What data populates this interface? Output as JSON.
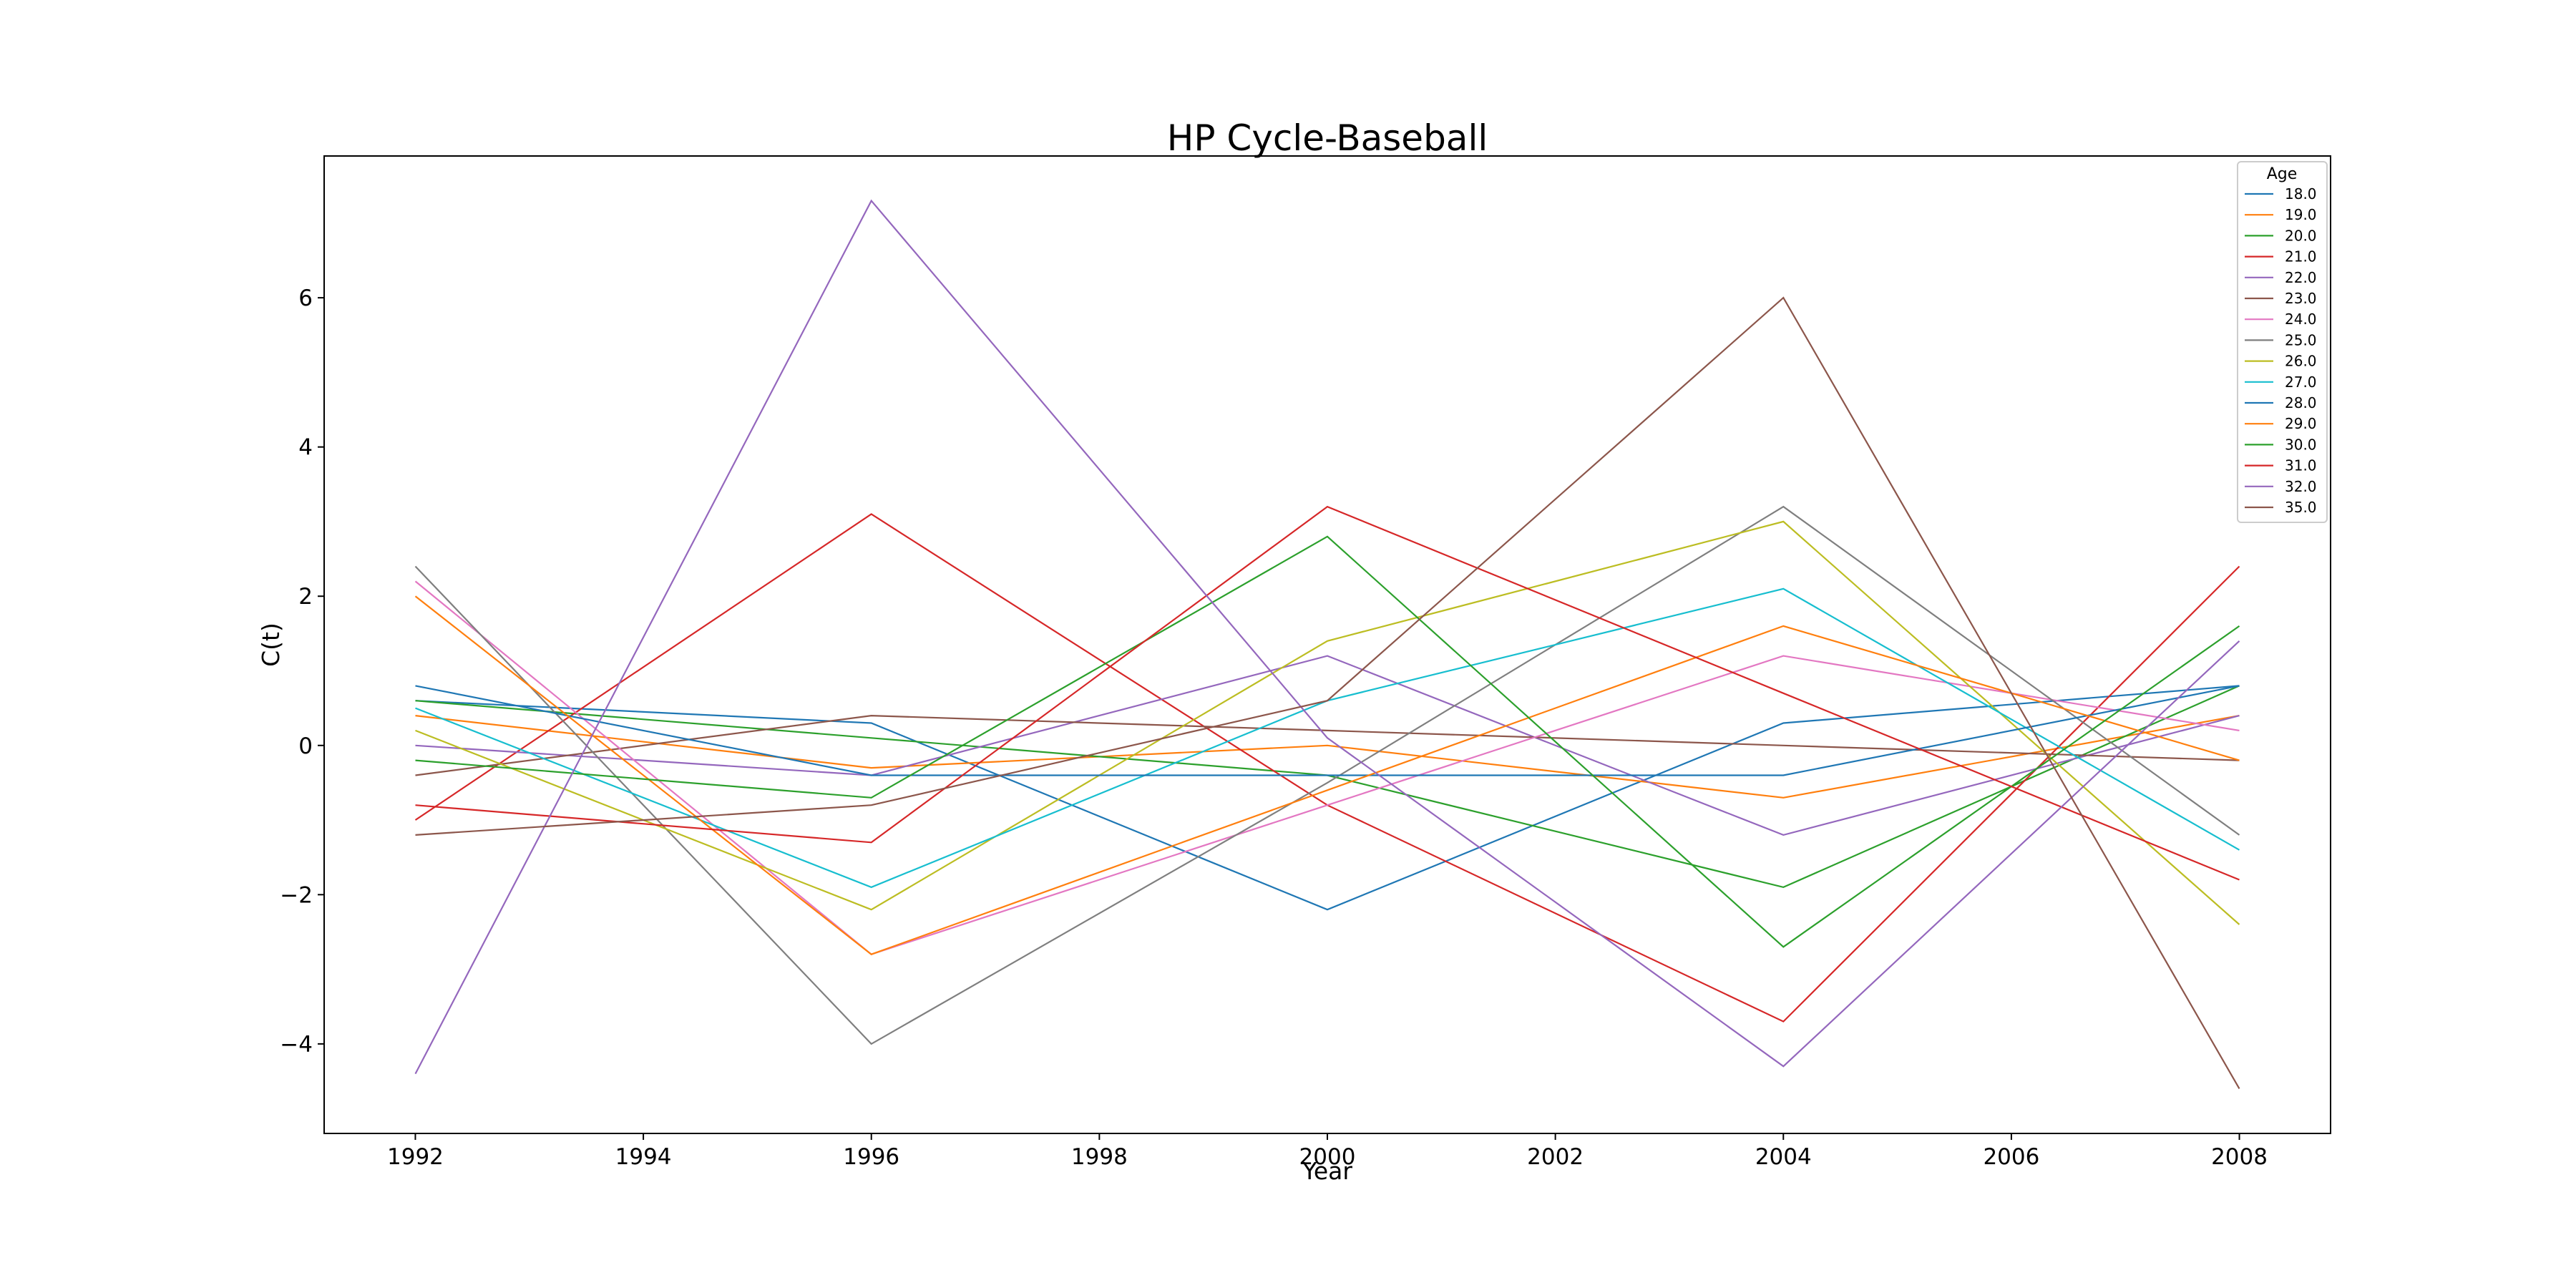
{
  "chart_data": {
    "type": "line",
    "title": "HP Cycle-Baseball",
    "xlabel": "Year",
    "ylabel": "C(t)",
    "xlim": [
      1991.2,
      2008.8
    ],
    "ylim": [
      -5.2,
      7.9
    ],
    "xticks": [
      1992,
      1994,
      1996,
      1998,
      2000,
      2002,
      2004,
      2006,
      2008
    ],
    "yticks": [
      -4,
      -2,
      0,
      2,
      4,
      6
    ],
    "grid": false,
    "legend": {
      "title": "Age",
      "placement": "top-right"
    },
    "x": [
      1992,
      1996,
      2000,
      2004,
      2008
    ],
    "series": [
      {
        "name": "18.0",
        "color": "#1f77b4",
        "values": [
          0.6,
          0.3,
          -2.2,
          0.3,
          0.8
        ]
      },
      {
        "name": "19.0",
        "color": "#ff7f0e",
        "values": [
          0.4,
          -0.3,
          0.0,
          -0.7,
          0.4
        ]
      },
      {
        "name": "20.0",
        "color": "#2ca02c",
        "values": [
          0.6,
          0.1,
          -0.4,
          -1.9,
          0.8
        ]
      },
      {
        "name": "21.0",
        "color": "#d62728",
        "values": [
          -1.0,
          3.1,
          -0.8,
          -3.7,
          2.4
        ]
      },
      {
        "name": "22.0",
        "color": "#9467bd",
        "values": [
          0.0,
          -0.4,
          1.2,
          -1.2,
          0.4
        ]
      },
      {
        "name": "23.0",
        "color": "#8c564b",
        "values": [
          -0.4,
          0.4,
          0.2,
          0.0,
          -0.2
        ]
      },
      {
        "name": "24.0",
        "color": "#e377c2",
        "values": [
          2.2,
          -2.8,
          -0.8,
          1.2,
          0.2
        ]
      },
      {
        "name": "25.0",
        "color": "#7f7f7f",
        "values": [
          2.4,
          -4.0,
          -0.5,
          3.2,
          -1.2
        ]
      },
      {
        "name": "26.0",
        "color": "#bcbd22",
        "values": [
          0.2,
          -2.2,
          1.4,
          3.0,
          -2.4
        ]
      },
      {
        "name": "27.0",
        "color": "#17becf",
        "values": [
          0.5,
          -1.9,
          0.6,
          2.1,
          -1.4
        ]
      },
      {
        "name": "28.0",
        "color": "#1f77b4",
        "values": [
          0.8,
          -0.4,
          -0.4,
          -0.4,
          0.8
        ]
      },
      {
        "name": "29.0",
        "color": "#ff7f0e",
        "values": [
          2.0,
          -2.8,
          -0.6,
          1.6,
          -0.2
        ]
      },
      {
        "name": "30.0",
        "color": "#2ca02c",
        "values": [
          -0.2,
          -0.7,
          2.8,
          -2.7,
          1.6
        ]
      },
      {
        "name": "31.0",
        "color": "#d62728",
        "values": [
          -0.8,
          -1.3,
          3.2,
          0.7,
          -1.8
        ]
      },
      {
        "name": "32.0",
        "color": "#9467bd",
        "values": [
          -4.4,
          7.3,
          0.1,
          -4.3,
          1.4
        ]
      },
      {
        "name": "35.0",
        "color": "#8c564b",
        "values": [
          -1.2,
          -0.8,
          0.6,
          6.0,
          -4.6
        ]
      }
    ]
  }
}
